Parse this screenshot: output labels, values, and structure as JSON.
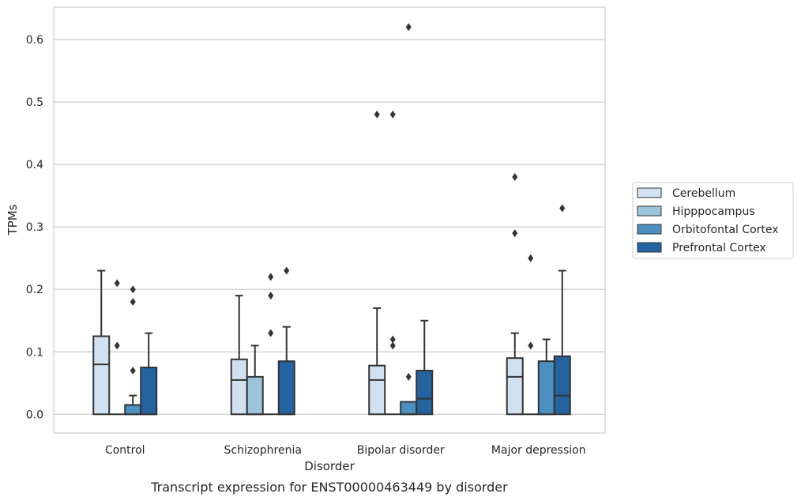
{
  "caption": "Transcript expression for ENST00000463449 by disorder",
  "colors": {
    "Cerebellum": "#d1e1f0",
    "Hipppocampus": "#9bc4dc",
    "Orbitofontal Cortex": "#4d8fc1",
    "Prefrontal Cortex": "#2462a0",
    "edge": "#333333",
    "grid": "#cccccc",
    "frame": "#cccccc"
  },
  "chart_data": {
    "type": "boxplot",
    "xlabel": "Disorder",
    "ylabel": "TPMs",
    "ylim": [
      -0.03,
      0.652
    ],
    "yticks": [
      0.0,
      0.1,
      0.2,
      0.3,
      0.4,
      0.5,
      0.6
    ],
    "ytick_labels": [
      "0.0",
      "0.1",
      "0.2",
      "0.3",
      "0.4",
      "0.5",
      "0.6"
    ],
    "grid": true,
    "legend_position": "right",
    "categories": [
      "Control",
      "Schizophrenia",
      "Bipolar disorder",
      "Major depression"
    ],
    "series": [
      {
        "name": "Cerebellum",
        "boxes": [
          {
            "whislo": 0,
            "q1": 0,
            "med": 0.08,
            "q3": 0.125,
            "whishi": 0.23,
            "fliers": []
          },
          {
            "whislo": 0,
            "q1": 0,
            "med": 0.055,
            "q3": 0.088,
            "whishi": 0.19,
            "fliers": []
          },
          {
            "whislo": 0,
            "q1": 0,
            "med": 0.055,
            "q3": 0.078,
            "whishi": 0.17,
            "fliers": [
              0.48
            ]
          },
          {
            "whislo": 0,
            "q1": 0,
            "med": 0.06,
            "q3": 0.09,
            "whishi": 0.13,
            "fliers": [
              0.29,
              0.38
            ]
          }
        ]
      },
      {
        "name": "Hipppocampus",
        "boxes": [
          {
            "whislo": 0,
            "q1": 0,
            "med": 0,
            "q3": 0,
            "whishi": 0,
            "fliers": [
              0.11,
              0.21
            ]
          },
          {
            "whislo": 0,
            "q1": 0,
            "med": 0,
            "q3": 0.06,
            "whishi": 0.11,
            "fliers": []
          },
          {
            "whislo": 0,
            "q1": 0,
            "med": 0,
            "q3": 0,
            "whishi": 0,
            "fliers": [
              0.11,
              0.12,
              0.48
            ]
          },
          {
            "whislo": 0,
            "q1": 0,
            "med": 0,
            "q3": 0,
            "whishi": 0,
            "fliers": [
              0.11,
              0.25
            ]
          }
        ]
      },
      {
        "name": "Orbitofontal Cortex",
        "boxes": [
          {
            "whislo": 0,
            "q1": 0,
            "med": 0,
            "q3": 0.015,
            "whishi": 0.03,
            "fliers": [
              0.07,
              0.18,
              0.2
            ]
          },
          {
            "whislo": 0,
            "q1": 0,
            "med": 0,
            "q3": 0,
            "whishi": 0,
            "fliers": [
              0.13,
              0.19,
              0.22
            ]
          },
          {
            "whislo": 0,
            "q1": 0,
            "med": 0,
            "q3": 0.02,
            "whishi": 0.02,
            "fliers": [
              0.06,
              0.62
            ]
          },
          {
            "whislo": 0,
            "q1": 0,
            "med": 0,
            "q3": 0.085,
            "whishi": 0.12,
            "fliers": []
          }
        ]
      },
      {
        "name": "Prefrontal Cortex",
        "boxes": [
          {
            "whislo": 0,
            "q1": 0,
            "med": 0,
            "q3": 0.075,
            "whishi": 0.13,
            "fliers": []
          },
          {
            "whislo": 0,
            "q1": 0,
            "med": 0,
            "q3": 0.085,
            "whishi": 0.14,
            "fliers": [
              0.23
            ]
          },
          {
            "whislo": 0,
            "q1": 0,
            "med": 0.025,
            "q3": 0.07,
            "whishi": 0.15,
            "fliers": []
          },
          {
            "whislo": 0,
            "q1": 0,
            "med": 0.03,
            "q3": 0.093,
            "whishi": 0.23,
            "fliers": [
              0.33
            ]
          }
        ]
      }
    ]
  }
}
